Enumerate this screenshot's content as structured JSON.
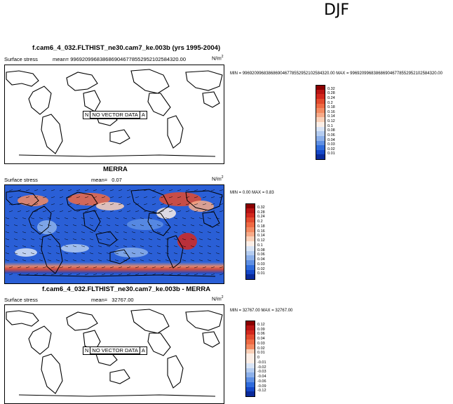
{
  "season": "DJF",
  "panels": [
    {
      "title": "f.cam6_4_032.FLTHIST_ne30.cam7_ke.003b (yrs 1995-2004)",
      "left_label": "Surface stress",
      "mean_label": "mean=",
      "mean_value": "9969209968386869046778552952102584320.00",
      "units": "N/m",
      "units_sup": "2",
      "minmax": "MIN = 9969209968386869046778552952102584320.00  MAX = 9969209968386869046778552952102584320.00",
      "no_data_text": "NO VECTOR DATA",
      "no_data_left": "N",
      "no_data_right": "A",
      "colorbar_levels": [
        "0.32",
        "0.28",
        "0.24",
        "0.2",
        "0.18",
        "0.16",
        "0.14",
        "0.12",
        "0.1",
        "0.08",
        "0.06",
        "0.04",
        "0.03",
        "0.02",
        "0.01"
      ],
      "colorbar_colors": [
        "#8b0000",
        "#b81414",
        "#d2281e",
        "#e24a2e",
        "#ee6a44",
        "#f38a62",
        "#f6aa88",
        "#fad0b8",
        "#fbeee6",
        "#d8e4f6",
        "#b4ccf0",
        "#8cb0ea",
        "#5e8fe4",
        "#2f6bdc",
        "#1548c8",
        "#0a2a9a"
      ]
    },
    {
      "title": "MERRA",
      "left_label": "Surface stress",
      "mean_label": "mean=",
      "mean_value": "0.07",
      "units": "N/m",
      "units_sup": "2",
      "minmax": "MIN =  0.00  MAX =  0.83",
      "colorbar_levels": [
        "0.32",
        "0.28",
        "0.24",
        "0.2",
        "0.18",
        "0.16",
        "0.14",
        "0.12",
        "0.1",
        "0.08",
        "0.06",
        "0.04",
        "0.03",
        "0.02",
        "0.01"
      ],
      "colorbar_colors": [
        "#8b0000",
        "#b81414",
        "#d2281e",
        "#e24a2e",
        "#ee6a44",
        "#f38a62",
        "#f6aa88",
        "#fad0b8",
        "#fbeee6",
        "#d8e4f6",
        "#b4ccf0",
        "#8cb0ea",
        "#5e8fe4",
        "#2f6bdc",
        "#1548c8",
        "#0a2a9a"
      ]
    },
    {
      "title": "f.cam6_4_032.FLTHIST_ne30.cam7_ke.003b - MERRA",
      "left_label": "Surface stress",
      "mean_label": "mean=",
      "mean_value": "32767.00",
      "units": "N/m",
      "units_sup": "2",
      "minmax": "MIN = 32767.00  MAX = 32767.00",
      "no_data_text": "NO VECTOR DATA",
      "no_data_left": "N",
      "no_data_right": "A",
      "colorbar_levels": [
        "0.12",
        "0.09",
        "0.06",
        "0.04",
        "0.03",
        "0.02",
        "0.01",
        "0",
        "-0.01",
        "-0.02",
        "-0.03",
        "-0.04",
        "-0.06",
        "-0.09",
        "-0.12"
      ],
      "colorbar_colors": [
        "#8b0000",
        "#b81414",
        "#d2281e",
        "#e24a2e",
        "#ee6a44",
        "#f38a62",
        "#fad0b8",
        "#fbeee6",
        "#fbeee6",
        "#d8e4f6",
        "#b4ccf0",
        "#8cb0ea",
        "#5e8fe4",
        "#2f6bdc",
        "#1548c8",
        "#0a2a9a"
      ]
    }
  ]
}
